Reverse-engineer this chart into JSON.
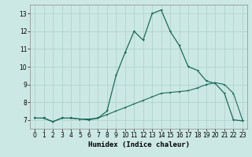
{
  "xlabel": "Humidex (Indice chaleur)",
  "xlim": [
    -0.5,
    23.5
  ],
  "ylim": [
    6.5,
    13.5
  ],
  "yticks": [
    7,
    8,
    9,
    10,
    11,
    12,
    13
  ],
  "xticks": [
    0,
    1,
    2,
    3,
    4,
    5,
    6,
    7,
    8,
    9,
    10,
    11,
    12,
    13,
    14,
    15,
    16,
    17,
    18,
    19,
    20,
    21,
    22,
    23
  ],
  "line_color": "#1a6b5a",
  "bg_color": "#cce8e4",
  "grid_color": "#aacfcc",
  "humidex_x": [
    0,
    1,
    2,
    3,
    4,
    5,
    6,
    7,
    8,
    9,
    10,
    11,
    12,
    13,
    14,
    15,
    16,
    17,
    18,
    19,
    20,
    21,
    22,
    23
  ],
  "humidex_y": [
    7.1,
    7.1,
    6.9,
    7.1,
    7.1,
    7.05,
    7.0,
    7.1,
    7.5,
    9.5,
    10.8,
    12.0,
    11.5,
    13.0,
    13.2,
    12.0,
    11.2,
    10.0,
    9.8,
    9.2,
    9.05,
    8.5,
    7.0,
    6.95
  ],
  "smooth_x": [
    0,
    1,
    2,
    3,
    4,
    5,
    6,
    7,
    8,
    9,
    10,
    11,
    12,
    13,
    14,
    15,
    16,
    17,
    18,
    19,
    20,
    21,
    22,
    23
  ],
  "smooth_y": [
    7.1,
    7.1,
    6.9,
    7.1,
    7.1,
    7.05,
    7.05,
    7.1,
    7.3,
    7.5,
    7.7,
    7.9,
    8.1,
    8.3,
    8.5,
    8.55,
    8.6,
    8.65,
    8.8,
    9.0,
    9.1,
    9.0,
    8.5,
    7.0
  ],
  "tick_fontsize": 5.5,
  "xlabel_fontsize": 6.5
}
